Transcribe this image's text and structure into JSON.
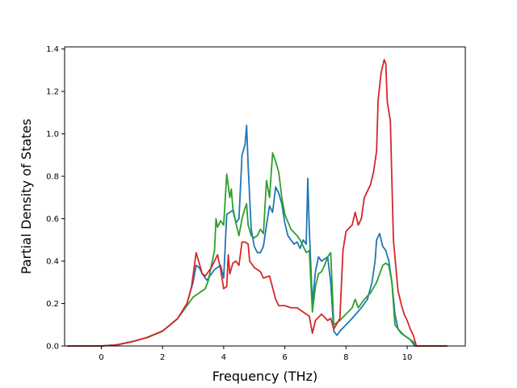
{
  "chart_data": {
    "type": "line",
    "title": "",
    "xlabel": "Frequency (THz)",
    "ylabel": "Partial Density of States",
    "xlim": [
      -1.2,
      11.9
    ],
    "ylim": [
      0.0,
      1.41
    ],
    "x_ticks": [
      0,
      2,
      4,
      6,
      8,
      10
    ],
    "y_ticks": [
      0.0,
      0.2,
      0.4,
      0.6,
      0.8,
      1.0,
      1.2,
      1.4
    ],
    "x_tick_labels": [
      "0",
      "2",
      "4",
      "6",
      "8",
      "10"
    ],
    "y_tick_labels": [
      "0.0",
      "0.2",
      "0.4",
      "0.6",
      "0.8",
      "1.0",
      "1.2",
      "1.4"
    ],
    "grid": false,
    "legend": "none",
    "series": [
      {
        "color": "#1f77b4",
        "points": [
          [
            -1.1,
            0
          ],
          [
            0,
            0
          ],
          [
            0.5,
            0.005
          ],
          [
            1.0,
            0.02
          ],
          [
            1.5,
            0.04
          ],
          [
            2.0,
            0.07
          ],
          [
            2.5,
            0.13
          ],
          [
            2.8,
            0.2
          ],
          [
            3.0,
            0.3
          ],
          [
            3.1,
            0.38
          ],
          [
            3.2,
            0.37
          ],
          [
            3.3,
            0.34
          ],
          [
            3.45,
            0.31
          ],
          [
            3.6,
            0.34
          ],
          [
            3.7,
            0.36
          ],
          [
            3.8,
            0.37
          ],
          [
            3.9,
            0.38
          ],
          [
            4.0,
            0.32
          ],
          [
            4.1,
            0.62
          ],
          [
            4.2,
            0.63
          ],
          [
            4.3,
            0.64
          ],
          [
            4.4,
            0.58
          ],
          [
            4.5,
            0.6
          ],
          [
            4.6,
            0.9
          ],
          [
            4.7,
            0.95
          ],
          [
            4.75,
            1.04
          ],
          [
            4.8,
            0.85
          ],
          [
            4.9,
            0.55
          ],
          [
            5.0,
            0.47
          ],
          [
            5.1,
            0.44
          ],
          [
            5.2,
            0.44
          ],
          [
            5.3,
            0.47
          ],
          [
            5.4,
            0.57
          ],
          [
            5.5,
            0.66
          ],
          [
            5.6,
            0.63
          ],
          [
            5.7,
            0.75
          ],
          [
            5.8,
            0.72
          ],
          [
            5.9,
            0.67
          ],
          [
            6.0,
            0.58
          ],
          [
            6.1,
            0.52
          ],
          [
            6.2,
            0.5
          ],
          [
            6.3,
            0.48
          ],
          [
            6.4,
            0.49
          ],
          [
            6.5,
            0.46
          ],
          [
            6.6,
            0.5
          ],
          [
            6.7,
            0.48
          ],
          [
            6.75,
            0.79
          ],
          [
            6.8,
            0.55
          ],
          [
            6.9,
            0.2
          ],
          [
            7.0,
            0.35
          ],
          [
            7.1,
            0.42
          ],
          [
            7.2,
            0.4
          ],
          [
            7.3,
            0.41
          ],
          [
            7.4,
            0.42
          ],
          [
            7.5,
            0.3
          ],
          [
            7.6,
            0.07
          ],
          [
            7.7,
            0.05
          ],
          [
            7.8,
            0.07
          ],
          [
            8.0,
            0.1
          ],
          [
            8.2,
            0.13
          ],
          [
            8.5,
            0.18
          ],
          [
            8.7,
            0.22
          ],
          [
            8.85,
            0.3
          ],
          [
            8.95,
            0.4
          ],
          [
            9.0,
            0.5
          ],
          [
            9.1,
            0.53
          ],
          [
            9.2,
            0.47
          ],
          [
            9.3,
            0.45
          ],
          [
            9.4,
            0.4
          ],
          [
            9.5,
            0.3
          ],
          [
            9.6,
            0.15
          ],
          [
            9.7,
            0.08
          ],
          [
            9.9,
            0.05
          ],
          [
            10.1,
            0.03
          ],
          [
            10.25,
            0.0
          ],
          [
            11.3,
            0.0
          ]
        ]
      },
      {
        "color": "#2ca02c",
        "points": [
          [
            -1.1,
            0
          ],
          [
            0,
            0
          ],
          [
            0.5,
            0.005
          ],
          [
            1.0,
            0.02
          ],
          [
            1.5,
            0.04
          ],
          [
            2.0,
            0.07
          ],
          [
            2.5,
            0.13
          ],
          [
            2.8,
            0.19
          ],
          [
            3.0,
            0.23
          ],
          [
            3.2,
            0.25
          ],
          [
            3.4,
            0.27
          ],
          [
            3.5,
            0.31
          ],
          [
            3.6,
            0.38
          ],
          [
            3.7,
            0.45
          ],
          [
            3.75,
            0.6
          ],
          [
            3.8,
            0.56
          ],
          [
            3.9,
            0.59
          ],
          [
            4.0,
            0.57
          ],
          [
            4.1,
            0.81
          ],
          [
            4.2,
            0.7
          ],
          [
            4.25,
            0.74
          ],
          [
            4.3,
            0.65
          ],
          [
            4.4,
            0.58
          ],
          [
            4.5,
            0.52
          ],
          [
            4.6,
            0.6
          ],
          [
            4.7,
            0.65
          ],
          [
            4.75,
            0.67
          ],
          [
            4.8,
            0.57
          ],
          [
            4.9,
            0.52
          ],
          [
            5.0,
            0.51
          ],
          [
            5.1,
            0.52
          ],
          [
            5.2,
            0.55
          ],
          [
            5.3,
            0.53
          ],
          [
            5.4,
            0.78
          ],
          [
            5.5,
            0.7
          ],
          [
            5.6,
            0.91
          ],
          [
            5.7,
            0.87
          ],
          [
            5.8,
            0.82
          ],
          [
            5.9,
            0.7
          ],
          [
            6.0,
            0.62
          ],
          [
            6.2,
            0.55
          ],
          [
            6.4,
            0.52
          ],
          [
            6.5,
            0.5
          ],
          [
            6.6,
            0.47
          ],
          [
            6.7,
            0.44
          ],
          [
            6.8,
            0.45
          ],
          [
            6.9,
            0.16
          ],
          [
            7.0,
            0.28
          ],
          [
            7.1,
            0.34
          ],
          [
            7.2,
            0.35
          ],
          [
            7.3,
            0.38
          ],
          [
            7.4,
            0.42
          ],
          [
            7.5,
            0.44
          ],
          [
            7.6,
            0.1
          ],
          [
            7.8,
            0.12
          ],
          [
            8.0,
            0.15
          ],
          [
            8.2,
            0.18
          ],
          [
            8.3,
            0.22
          ],
          [
            8.4,
            0.18
          ],
          [
            8.6,
            0.22
          ],
          [
            8.8,
            0.25
          ],
          [
            9.0,
            0.3
          ],
          [
            9.2,
            0.38
          ],
          [
            9.3,
            0.39
          ],
          [
            9.4,
            0.38
          ],
          [
            9.5,
            0.3
          ],
          [
            9.6,
            0.1
          ],
          [
            9.8,
            0.06
          ],
          [
            10.0,
            0.04
          ],
          [
            10.2,
            0.02
          ],
          [
            10.3,
            0.0
          ],
          [
            11.3,
            0.0
          ]
        ]
      },
      {
        "color": "#d62728",
        "points": [
          [
            -1.1,
            0
          ],
          [
            0,
            0
          ],
          [
            0.5,
            0.005
          ],
          [
            1.0,
            0.02
          ],
          [
            1.5,
            0.04
          ],
          [
            2.0,
            0.07
          ],
          [
            2.5,
            0.13
          ],
          [
            2.8,
            0.2
          ],
          [
            2.95,
            0.28
          ],
          [
            3.1,
            0.44
          ],
          [
            3.2,
            0.39
          ],
          [
            3.3,
            0.34
          ],
          [
            3.4,
            0.33
          ],
          [
            3.6,
            0.37
          ],
          [
            3.8,
            0.43
          ],
          [
            3.9,
            0.36
          ],
          [
            4.0,
            0.27
          ],
          [
            4.1,
            0.28
          ],
          [
            4.15,
            0.43
          ],
          [
            4.2,
            0.34
          ],
          [
            4.3,
            0.39
          ],
          [
            4.4,
            0.4
          ],
          [
            4.5,
            0.38
          ],
          [
            4.6,
            0.49
          ],
          [
            4.7,
            0.49
          ],
          [
            4.8,
            0.48
          ],
          [
            4.85,
            0.4
          ],
          [
            5.0,
            0.37
          ],
          [
            5.2,
            0.35
          ],
          [
            5.3,
            0.32
          ],
          [
            5.5,
            0.33
          ],
          [
            5.7,
            0.22
          ],
          [
            5.8,
            0.19
          ],
          [
            6.0,
            0.19
          ],
          [
            6.2,
            0.18
          ],
          [
            6.4,
            0.18
          ],
          [
            6.6,
            0.16
          ],
          [
            6.8,
            0.14
          ],
          [
            6.9,
            0.06
          ],
          [
            7.0,
            0.12
          ],
          [
            7.2,
            0.15
          ],
          [
            7.4,
            0.12
          ],
          [
            7.5,
            0.13
          ],
          [
            7.6,
            0.08
          ],
          [
            7.8,
            0.13
          ],
          [
            7.9,
            0.45
          ],
          [
            8.0,
            0.54
          ],
          [
            8.2,
            0.57
          ],
          [
            8.3,
            0.63
          ],
          [
            8.4,
            0.57
          ],
          [
            8.5,
            0.6
          ],
          [
            8.6,
            0.7
          ],
          [
            8.8,
            0.76
          ],
          [
            8.9,
            0.82
          ],
          [
            9.0,
            0.92
          ],
          [
            9.05,
            1.16
          ],
          [
            9.15,
            1.29
          ],
          [
            9.25,
            1.35
          ],
          [
            9.3,
            1.33
          ],
          [
            9.35,
            1.15
          ],
          [
            9.45,
            1.06
          ],
          [
            9.55,
            0.5
          ],
          [
            9.7,
            0.26
          ],
          [
            9.8,
            0.2
          ],
          [
            9.9,
            0.15
          ],
          [
            10.0,
            0.12
          ],
          [
            10.1,
            0.08
          ],
          [
            10.2,
            0.05
          ],
          [
            10.3,
            0.0
          ],
          [
            11.3,
            0.0
          ]
        ]
      }
    ]
  }
}
